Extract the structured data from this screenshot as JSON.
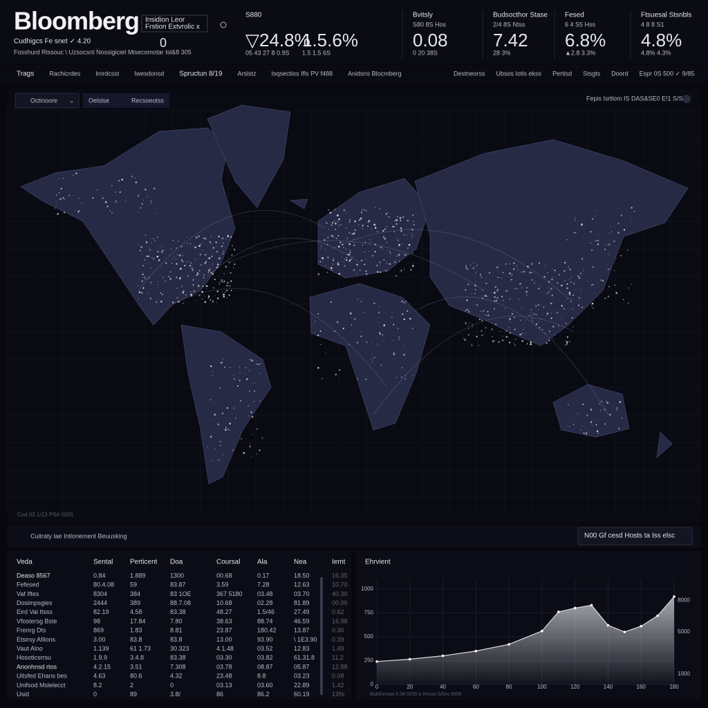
{
  "header": {
    "brand": "Bloomberg",
    "status": "Cudhigcs Fe snet ✓ 4.20",
    "line2": "Fosshurd Rissouc  \\ Uzsocsnt  Nossigiciet  Misecomotar  Isl&8 305",
    "box1": "Insidion Leor",
    "box2": "Frstion Extvrolic  x",
    "counter": "0"
  },
  "tickers": [
    {
      "label": "S880",
      "value": "▽24.8%",
      "sub": "05 43 27 8 0.9S"
    },
    {
      "value": "1.5.6%",
      "sub": "1.5 1.5 6S"
    },
    {
      "label": "Bvitsly",
      "sub2": "S80 8S Hos",
      "value": "0.08",
      "sub": "0 20 38S"
    },
    {
      "label": "Budsocthor Stase",
      "sub2": "2/4 8S Ntss",
      "value": "7.42",
      "sub": "28 3%"
    },
    {
      "label": "Fesed",
      "sub2": "6 4 S5 Hss",
      "value": "6.8%",
      "sub": "▲2.8 3.3%"
    },
    {
      "label": "Ftsuesal Stsnbls",
      "sub2": "4 8 8 S1",
      "value": "4.8%",
      "sub": "4.8% 4.3%"
    }
  ],
  "nav": {
    "left": [
      "Trags",
      "Rachicrdes",
      "Imrdcsst",
      "Iwesdonsd",
      "Spructun 8/19",
      "Arslstz",
      "Isqsectios Ifls PV f488",
      "Anidsns Blocmberg"
    ],
    "right": [
      "Destneorss",
      "Ubsos Iotis ekss",
      "Pertisd",
      "Stsgts",
      "Doord",
      "Espr 0S 500  ✓ 9/85"
    ]
  },
  "map": {
    "dropdown": "Octinoore",
    "tabs": [
      "Oelslse",
      "Recsoeotss"
    ],
    "right": "Fepis Isrtlom  IS DAS&SE0 E!1 S/S",
    "footnote": "Cod  03 1/13 PS#  0005"
  },
  "section": {
    "title": "Cuitraty lae Intlonement Beuusking",
    "search": "N00 Gf cesd Hosts ta Iss elsc"
  },
  "table": {
    "headers": [
      "Veda",
      "Sental",
      "Perticent",
      "Doa",
      "Coursal",
      "Ala",
      "Nea",
      "Iemt"
    ],
    "rows": [
      [
        "Deaso 8567",
        "0.84",
        "1.889",
        "1300",
        "00.68",
        "0.17",
        "18.50",
        "16.35"
      ],
      [
        "Fefesed",
        "80.4.08",
        "59",
        "83.87",
        "3.59",
        "7.28",
        "12.63",
        "10.70"
      ],
      [
        "Vaf Iftes",
        "8304",
        "384",
        "83 1OE",
        "367 5180",
        "03.48",
        "03.70",
        "40.30"
      ],
      [
        "Dosimpsgies",
        "2444",
        "389",
        "88.7.08",
        "10.68",
        "02.28",
        "81.89",
        "00.00"
      ],
      [
        "Eird Val Itsss",
        "82.19",
        "4.58",
        "83.38",
        "48.27",
        "1.5/46",
        "27.49",
        "0.62"
      ],
      [
        "Vfostersg  Bste",
        "98",
        "17.84",
        "7.80",
        "38.63",
        "88.74",
        "46.59",
        "16.98"
      ],
      [
        "Frenrg  Dts",
        "869",
        "1.83",
        "8.81",
        "23.87",
        "180.42",
        "13.87",
        "0.30"
      ],
      [
        "Etsirsy  Afilons",
        "3.00",
        "83.8",
        "83.8",
        "13.00",
        "93.90",
        "\\ 1E3.90",
        "0.39"
      ],
      [
        "Vaut Alno",
        "1.139",
        "61 1.73",
        "30.323",
        "4.1.48",
        "03.52",
        "12.83",
        "1.49"
      ],
      [
        "Hosoticsrrsu",
        "1.9.9",
        "3.4.8",
        "83.38",
        "03.30",
        "03.82",
        "61.31.8",
        "11.2"
      ],
      [
        "Anonhnsd rtos",
        "4.2.15",
        "3.51",
        "7.308",
        "03.78",
        "08.87",
        "05.87",
        "12.88"
      ],
      [
        "Uitsfed Ehans bes",
        "4.63",
        "80.6",
        "4.32",
        "23.48",
        "8.8",
        "03.23",
        "0.08"
      ],
      [
        "Unifsod Mslelecct",
        "8.2",
        "2",
        "0",
        "03.13",
        "03.60",
        "22.89",
        "1.42"
      ],
      [
        "Usid",
        "0",
        "89",
        "3.8/",
        "86",
        "86.2",
        "60.19",
        "13%"
      ]
    ]
  },
  "chart_data": {
    "type": "area",
    "title": "Ehrvient",
    "x": [
      0,
      20,
      40,
      60,
      80,
      100,
      110,
      120,
      130,
      140,
      150,
      160,
      170,
      180
    ],
    "values": [
      240,
      265,
      300,
      350,
      420,
      560,
      760,
      800,
      830,
      620,
      550,
      610,
      720,
      920
    ],
    "xlim": [
      0,
      180
    ],
    "xticks": [
      0,
      20,
      40,
      60,
      80,
      100,
      120,
      140,
      160,
      180
    ],
    "ylim": [
      0,
      1100
    ],
    "yticks": [
      0,
      250,
      500,
      750,
      1000
    ],
    "y2lim": [
      0,
      10000
    ],
    "y2ticks": [
      1000,
      5000,
      8000
    ],
    "footnote": "Bubkhrmas 0.38  0050 b  Rnsso 6/5ns 6556",
    "color": "#d9dae2",
    "grid": true
  }
}
